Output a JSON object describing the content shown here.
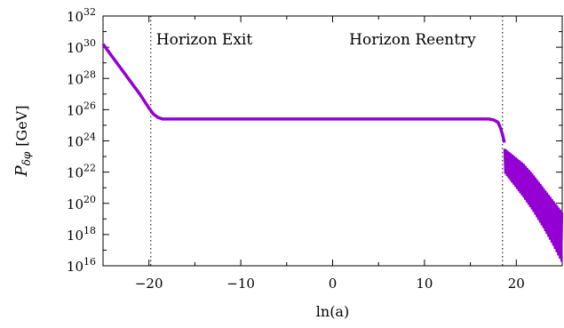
{
  "chart_data": {
    "type": "line",
    "title": "",
    "xlabel": "ln(a)",
    "ylabel": "P_{δφ} [GeV]",
    "ylabel_parts": {
      "main": "P",
      "sub": "δφ",
      "unit": "[GeV]"
    },
    "xlim": [
      -25,
      25
    ],
    "ylim_exponent": [
      16,
      32
    ],
    "y_scale": "log",
    "x_ticks": [
      -20,
      -10,
      0,
      10,
      20
    ],
    "x_tick_labels": [
      "−20",
      "−10",
      "0",
      "10",
      "20"
    ],
    "y_tick_exponents": [
      16,
      18,
      20,
      22,
      24,
      26,
      28,
      30,
      32
    ],
    "y_tick_base": "10",
    "grid": false,
    "legend": "none",
    "series_color": "#9400d3",
    "vlines": [
      {
        "x": -19.8,
        "label": "Horizon Exit"
      },
      {
        "x": 18.5,
        "label": "Horizon Reentry"
      }
    ],
    "series": [
      {
        "x": [
          -25,
          -24,
          -23,
          -22,
          -21,
          -20,
          -19.5,
          -19,
          -18.5,
          -18,
          -17,
          -15,
          -10,
          -5,
          0,
          5,
          10,
          15,
          17,
          17.5,
          18,
          18.3,
          18.5,
          18.7
        ],
        "y_exponent": [
          30.2,
          29.4,
          28.6,
          27.8,
          27.0,
          26.1,
          25.7,
          25.5,
          25.4,
          25.4,
          25.4,
          25.4,
          25.4,
          25.4,
          25.4,
          25.4,
          25.4,
          25.4,
          25.4,
          25.35,
          25.2,
          24.8,
          24.4,
          23.9
        ]
      }
    ],
    "oscillation_band": {
      "x_start": 18.7,
      "x_end": 25,
      "upper_exponent": [
        23.5,
        23.0,
        22.5,
        21.8,
        21.0,
        20.2,
        19.4
      ],
      "lower_exponent": [
        22.0,
        21.2,
        20.4,
        19.5,
        18.5,
        17.4,
        16.2
      ]
    }
  }
}
